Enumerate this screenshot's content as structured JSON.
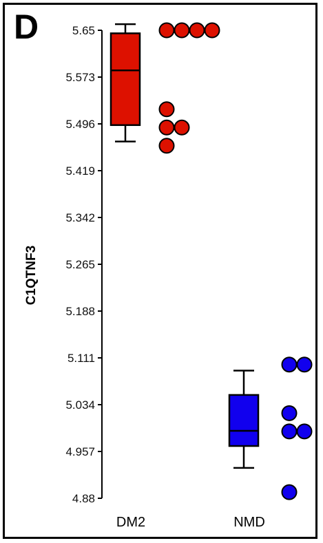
{
  "panel_label": "D",
  "chart_data": {
    "type": "box",
    "ylabel": "C1QTNF3",
    "xlabel": "",
    "ylim": [
      4.88,
      5.65
    ],
    "yticks": [
      "5.65",
      "5.573",
      "5.496",
      "5.419",
      "5.342",
      "5.265",
      "5.188",
      "5.111",
      "5.034",
      "4.957",
      "4.88"
    ],
    "categories": [
      "DM2",
      "NMD"
    ],
    "groups": [
      {
        "category": "DM2",
        "color": "#dd1100",
        "box": {
          "min": 5.467,
          "q1": 5.494,
          "median": 5.584,
          "q3": 5.645,
          "max": 5.66
        },
        "points": [
          5.65,
          5.65,
          5.65,
          5.65,
          5.52,
          5.49,
          5.49,
          5.46
        ]
      },
      {
        "category": "NMD",
        "color": "#1100ee",
        "box": {
          "min": 4.93,
          "q1": 4.966,
          "median": 4.991,
          "q3": 5.05,
          "max": 5.09
        },
        "points": [
          5.1,
          5.1,
          5.02,
          4.99,
          4.99,
          4.89
        ]
      }
    ]
  }
}
